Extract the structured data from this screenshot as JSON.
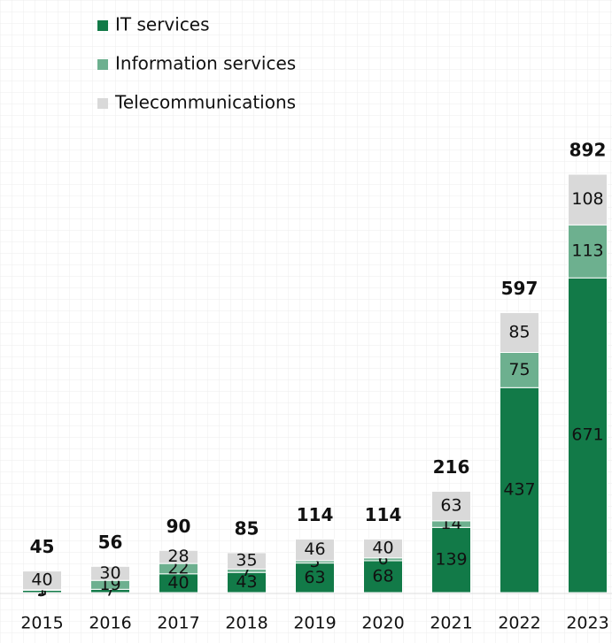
{
  "chart_data": {
    "type": "stacked_bar",
    "categories": [
      "2015",
      "2016",
      "2017",
      "2018",
      "2019",
      "2020",
      "2021",
      "2022",
      "2023"
    ],
    "series": [
      {
        "name": "IT services",
        "color": "#127a48",
        "values": [
          5,
          7,
          40,
          43,
          63,
          68,
          139,
          437,
          671
        ]
      },
      {
        "name": "Information services",
        "color": "#6db08f",
        "values": [
          1,
          19,
          22,
          7,
          5,
          6,
          14,
          75,
          113
        ]
      },
      {
        "name": "Telecommunications",
        "color": "#d9d9d9",
        "values": [
          40,
          30,
          28,
          35,
          46,
          40,
          63,
          85,
          108
        ]
      }
    ],
    "totals": [
      45,
      56,
      90,
      85,
      114,
      114,
      216,
      597,
      892
    ]
  }
}
